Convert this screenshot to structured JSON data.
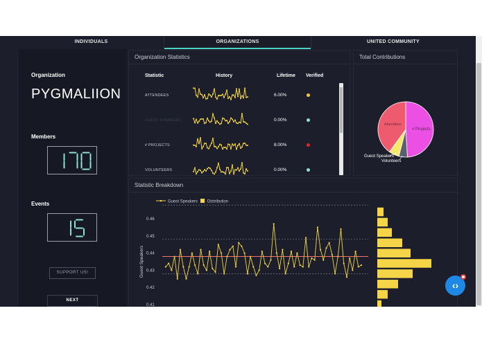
{
  "tabs": [
    {
      "label": "INDIVIDUALS"
    },
    {
      "label": "ORGANIZATIONS"
    },
    {
      "label": "UNITED COMMUNITY"
    }
  ],
  "sidebar": {
    "organization_label": "Organization",
    "organization_name": "PYGMALIION",
    "members_label": "Members",
    "members_value": "170",
    "events_label": "Events",
    "events_value": "15",
    "support_label": "SUPPORT US!",
    "next_label": "NEXT"
  },
  "org_stats": {
    "title": "Organization Statistics",
    "headers": {
      "statistic": "Statistic",
      "history": "History",
      "lifetime": "Lifetime",
      "verified": "Verified"
    },
    "rows": [
      {
        "statistic": "ATTENDEES",
        "lifetime": "6.00%",
        "verified_color": "#f5c542",
        "dim": false
      },
      {
        "statistic": "GUEST SPEAKERS",
        "lifetime": "0.00%",
        "verified_color": "#8ee0d8",
        "dim": true
      },
      {
        "statistic": "# PROJECTS",
        "lifetime": "8.00%",
        "verified_color": "#e02424",
        "dim": false
      },
      {
        "statistic": "VOLUNTEERS",
        "lifetime": "0.00%",
        "verified_color": "#8ee0d8",
        "dim": false
      }
    ]
  },
  "contributions": {
    "title": "Total Contributions",
    "chart_data": {
      "type": "pie",
      "slices": [
        {
          "label": "# Projects",
          "value": 49,
          "color": "#ec4fe3"
        },
        {
          "label": "Volunteers",
          "value": 5,
          "color": "#5a5f6e"
        },
        {
          "label": "Guest Speakers",
          "value": 6,
          "color": "#f5e86a"
        },
        {
          "label": "Attendees",
          "value": 40,
          "color": "#ee5b6e"
        }
      ]
    }
  },
  "breakdown": {
    "title": "Statistic Breakdown",
    "chart_data": {
      "type": "line",
      "legend": [
        {
          "name": "Guest Speakers",
          "color": "#f5d547"
        },
        {
          "name": "Distribution",
          "color": "#f5d547"
        }
      ],
      "ylabel": "Guest Speakers",
      "yticks": [
        "0.46",
        "0.45",
        "0.44",
        "0.43",
        "0.42",
        "0.41"
      ],
      "ylim": [
        0.41,
        0.465
      ],
      "mean_line": 0.438,
      "band_lines": [
        0.448,
        0.428,
        0.468
      ],
      "series": [
        {
          "name": "Guest Speakers",
          "values": [
            0.432,
            0.434,
            0.43,
            0.438,
            0.425,
            0.442,
            0.432,
            0.425,
            0.432,
            0.44,
            0.433,
            0.428,
            0.442,
            0.433,
            0.43,
            0.441,
            0.431,
            0.429,
            0.445,
            0.44,
            0.428,
            0.438,
            0.442,
            0.444,
            0.432,
            0.446,
            0.444,
            0.44,
            0.428,
            0.438,
            0.432,
            0.427,
            0.43,
            0.441,
            0.434,
            0.432,
            0.436,
            0.457,
            0.44,
            0.431,
            0.442,
            0.428,
            0.434,
            0.441,
            0.432,
            0.44,
            0.433,
            0.432,
            0.449,
            0.432,
            0.437,
            0.436,
            0.455,
            0.442,
            0.436,
            0.443,
            0.446,
            0.439,
            0.428,
            0.438,
            0.454,
            0.434,
            0.426,
            0.437,
            0.43,
            0.441,
            0.432,
            0.433
          ]
        }
      ],
      "distribution": [
        {
          "y": 0.464,
          "value": 3
        },
        {
          "y": 0.458,
          "value": 5
        },
        {
          "y": 0.452,
          "value": 7
        },
        {
          "y": 0.446,
          "value": 12
        },
        {
          "y": 0.44,
          "value": 16
        },
        {
          "y": 0.434,
          "value": 26
        },
        {
          "y": 0.428,
          "value": 17
        },
        {
          "y": 0.422,
          "value": 10
        },
        {
          "y": 0.416,
          "value": 5
        },
        {
          "y": 0.41,
          "value": 2
        }
      ]
    }
  },
  "icons": {
    "fab": "code-brackets-icon"
  }
}
